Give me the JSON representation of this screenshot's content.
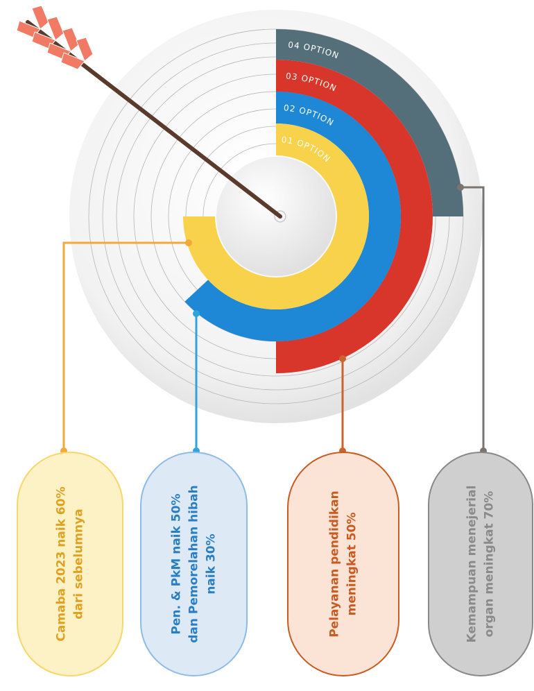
{
  "rings": [
    {
      "label": "01 OPTION"
    },
    {
      "label": "02 OPTION"
    },
    {
      "label": "03 OPTION"
    },
    {
      "label": "04 OPTION"
    }
  ],
  "cards": [
    {
      "lines": [
        "Camaba 2023 naik 60%",
        "dari sebelumnya"
      ]
    },
    {
      "lines": [
        "Pen. & PkM naik 50%",
        "dan Pemorelahan hibah",
        "naik 30%"
      ]
    },
    {
      "lines": [
        "Pelayanan pendidikan",
        "meningkat 50%"
      ]
    },
    {
      "lines": [
        "Kemampuan menejerial",
        "organ meningkat 70%"
      ]
    }
  ]
}
